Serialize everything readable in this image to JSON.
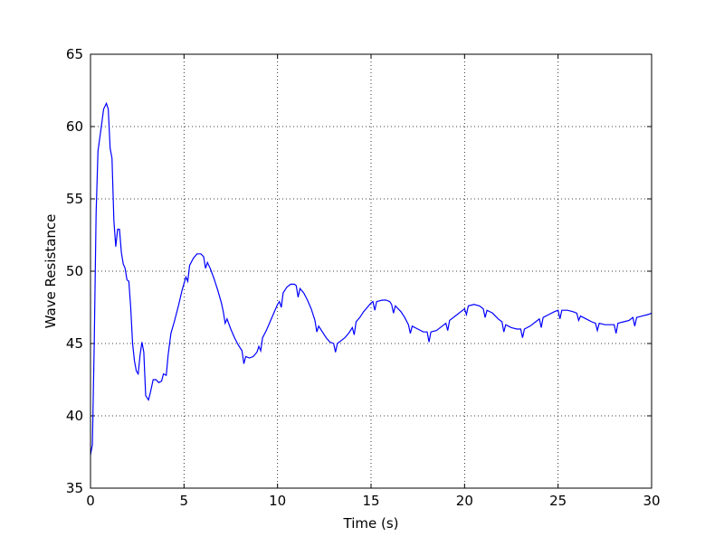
{
  "chart_data": {
    "type": "line",
    "xlabel": "Time (s)",
    "ylabel": "Wave Resistance",
    "xlim": [
      0,
      30
    ],
    "ylim": [
      35,
      65
    ],
    "xticks": [
      0,
      5,
      10,
      15,
      20,
      25,
      30
    ],
    "yticks": [
      35,
      40,
      45,
      50,
      55,
      60,
      65
    ],
    "grid": true,
    "series": [
      {
        "color": "#0000ff",
        "x": [
          0,
          0.1,
          0.2,
          0.3,
          0.4,
          0.6,
          0.7,
          0.85,
          0.95,
          1.05,
          1.15,
          1.25,
          1.35,
          1.45,
          1.55,
          1.65,
          1.75,
          1.85,
          1.95,
          2.05,
          2.15,
          2.25,
          2.35,
          2.45,
          2.55,
          2.65,
          2.75,
          2.85,
          2.95,
          3.1,
          3.2,
          3.35,
          3.5,
          3.65,
          3.8,
          3.9,
          4.05,
          4.15,
          4.3,
          4.5,
          4.7,
          4.9,
          5.1,
          5.2,
          5.3,
          5.5,
          5.7,
          5.9,
          6.05,
          6.15,
          6.25,
          6.4,
          6.6,
          6.8,
          7.0,
          7.1,
          7.2,
          7.3,
          7.5,
          7.7,
          7.9,
          8.1,
          8.2,
          8.3,
          8.5,
          8.7,
          8.9,
          9.0,
          9.1,
          9.2,
          9.4,
          9.6,
          9.8,
          10.0,
          10.1,
          10.2,
          10.3,
          10.5,
          10.7,
          10.9,
          11.0,
          11.1,
          11.2,
          11.4,
          11.6,
          11.8,
          12.0,
          12.1,
          12.2,
          12.4,
          12.6,
          12.8,
          13.0,
          13.1,
          13.2,
          13.4,
          13.6,
          13.8,
          14.0,
          14.1,
          14.2,
          14.4,
          14.6,
          14.8,
          15.0,
          15.1,
          15.2,
          15.3,
          15.6,
          15.8,
          16.0,
          16.1,
          16.2,
          16.3,
          16.6,
          16.8,
          17.0,
          17.1,
          17.2,
          17.5,
          17.8,
          18.0,
          18.1,
          18.2,
          18.5,
          18.8,
          19.0,
          19.1,
          19.2,
          19.5,
          19.8,
          20.0,
          20.1,
          20.2,
          20.5,
          20.8,
          21.0,
          21.1,
          21.2,
          21.5,
          21.8,
          22.0,
          22.1,
          22.2,
          22.5,
          22.8,
          23.0,
          23.1,
          23.2,
          23.5,
          23.8,
          24.0,
          24.1,
          24.2,
          24.5,
          24.8,
          25.0,
          25.1,
          25.2,
          25.5,
          25.8,
          26.0,
          26.1,
          26.2,
          26.5,
          26.8,
          27.0,
          27.1,
          27.2,
          27.5,
          27.8,
          28.0,
          28.1,
          28.2,
          28.5,
          28.8,
          29.0,
          29.1,
          29.2,
          29.5,
          29.8,
          30.0
        ],
        "values": [
          37.3,
          38,
          45,
          54,
          58.3,
          60.2,
          61.2,
          61.6,
          61.2,
          58.5,
          57.8,
          53.5,
          51.7,
          52.9,
          52.9,
          51.3,
          50.5,
          50.2,
          49.4,
          49.3,
          47.5,
          45,
          43.8,
          43.1,
          42.9,
          44.2,
          45.1,
          44.4,
          41.4,
          41.1,
          41.6,
          42.5,
          42.5,
          42.3,
          42.4,
          42.9,
          42.8,
          44.2,
          45.7,
          46.6,
          47.6,
          48.7,
          49.6,
          49.3,
          50.4,
          50.9,
          51.2,
          51.2,
          51.0,
          50.2,
          50.6,
          50.2,
          49.5,
          48.7,
          47.8,
          47.2,
          46.4,
          46.7,
          46.0,
          45.4,
          44.9,
          44.5,
          43.6,
          44.1,
          44.0,
          44.1,
          44.4,
          44.8,
          44.5,
          45.4,
          45.9,
          46.5,
          47.1,
          47.7,
          47.9,
          47.5,
          48.5,
          48.9,
          49.1,
          49.1,
          49.0,
          48.2,
          48.8,
          48.5,
          48.0,
          47.4,
          46.6,
          45.8,
          46.2,
          45.8,
          45.4,
          45.1,
          45.0,
          44.4,
          45.0,
          45.2,
          45.4,
          45.7,
          46.1,
          45.6,
          46.5,
          46.8,
          47.2,
          47.5,
          47.8,
          47.9,
          47.3,
          47.9,
          48.0,
          48.0,
          47.9,
          47.7,
          47.1,
          47.6,
          47.2,
          46.8,
          46.3,
          45.7,
          46.2,
          46.0,
          45.8,
          45.8,
          45.1,
          45.8,
          45.9,
          46.2,
          46.4,
          45.9,
          46.6,
          46.9,
          47.2,
          47.4,
          47.0,
          47.6,
          47.7,
          47.6,
          47.4,
          46.8,
          47.3,
          47.1,
          46.7,
          46.5,
          45.8,
          46.3,
          46.1,
          46.0,
          46.0,
          45.4,
          46.0,
          46.2,
          46.5,
          46.7,
          46.1,
          46.8,
          47.0,
          47.2,
          47.3,
          46.7,
          47.3,
          47.3,
          47.2,
          47.1,
          46.6,
          46.9,
          46.7,
          46.5,
          46.4,
          45.9,
          46.4,
          46.3,
          46.3,
          46.3,
          45.7,
          46.4,
          46.5,
          46.6,
          46.8,
          46.2,
          46.8,
          46.9,
          47.0,
          47.1
        ]
      }
    ]
  }
}
